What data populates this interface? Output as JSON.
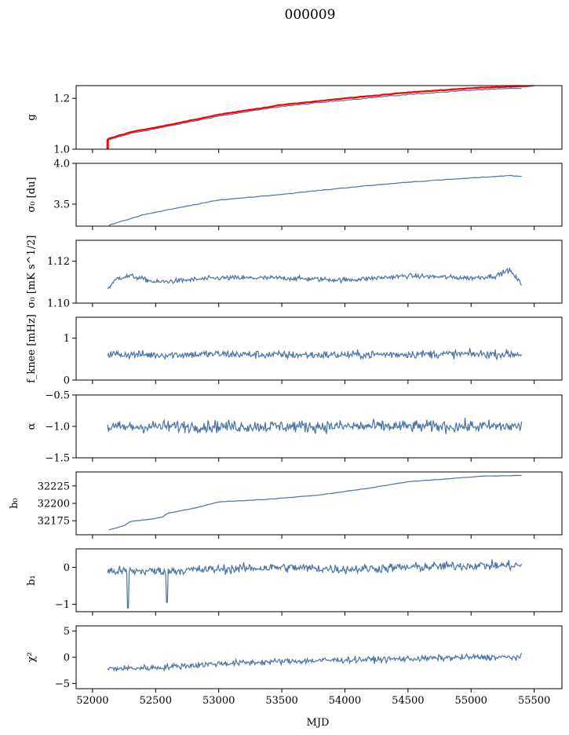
{
  "figure": {
    "title": "000009",
    "xlabel": "MJD"
  },
  "colors": {
    "series": "#4c72a4",
    "reference": "#ff0000"
  },
  "chart_data": [
    {
      "type": "line",
      "id": "g",
      "ylabel": "g",
      "xlim": [
        51870,
        55720
      ],
      "ylim": [
        1.0,
        1.25
      ],
      "yticks": [
        1.0,
        1.2
      ],
      "ytick_labels": [
        "1.0",
        "1.2"
      ],
      "series": [
        {
          "key": "measured",
          "x": [
            52120,
            52300,
            52600,
            53000,
            53500,
            54000,
            54500,
            55000,
            55400
          ],
          "y": [
            1.035,
            1.062,
            1.09,
            1.13,
            1.168,
            1.193,
            1.215,
            1.232,
            1.24
          ]
        },
        {
          "key": "reference",
          "x": [
            52120,
            52300,
            52600,
            53000,
            53500,
            54000,
            54500,
            55000,
            55500
          ],
          "y": [
            1.04,
            1.067,
            1.095,
            1.136,
            1.174,
            1.2,
            1.223,
            1.24,
            1.25
          ],
          "drop": {
            "x": 52120,
            "y_from": 1.04,
            "y_to": 1.0
          }
        }
      ]
    },
    {
      "type": "line",
      "id": "sigma0_du",
      "ylabel": "σ₀ [du]",
      "xlim": [
        51870,
        55720
      ],
      "ylim": [
        3.23,
        4.0
      ],
      "yticks": [
        3.5,
        4.0
      ],
      "ytick_labels": [
        "3.5",
        "4.0"
      ],
      "series": [
        {
          "key": "measured",
          "x": [
            52130,
            52400,
            52700,
            53000,
            53500,
            54000,
            54500,
            55000,
            55300,
            55400
          ],
          "y": [
            3.24,
            3.37,
            3.46,
            3.55,
            3.62,
            3.7,
            3.77,
            3.82,
            3.85,
            3.84
          ]
        }
      ]
    },
    {
      "type": "line",
      "id": "sigma0_mk",
      "ylabel": "σ₀ [mK s^1/2]",
      "xlim": [
        51870,
        55720
      ],
      "ylim": [
        1.1,
        1.13
      ],
      "yticks": [
        1.1,
        1.12
      ],
      "ytick_labels": [
        "1.10",
        "1.12"
      ],
      "series": [
        {
          "key": "measured",
          "x": [
            52120,
            52200,
            52300,
            52500,
            53000,
            53500,
            54000,
            54500,
            55000,
            55200,
            55300,
            55400
          ],
          "y": [
            1.107,
            1.112,
            1.113,
            1.11,
            1.112,
            1.112,
            1.111,
            1.113,
            1.112,
            1.113,
            1.116,
            1.109
          ]
        }
      ]
    },
    {
      "type": "line",
      "id": "fknee",
      "ylabel": "f_knee [mHz]",
      "xlim": [
        51870,
        55720
      ],
      "ylim": [
        0.0,
        1.5
      ],
      "yticks": [
        0,
        1
      ],
      "ytick_labels": [
        "0",
        "1"
      ],
      "series": [
        {
          "key": "measured",
          "x": [
            52120,
            52500,
            53000,
            53500,
            54000,
            54500,
            55000,
            55400
          ],
          "y": [
            0.62,
            0.6,
            0.62,
            0.6,
            0.6,
            0.62,
            0.62,
            0.62
          ]
        }
      ]
    },
    {
      "type": "line",
      "id": "alpha",
      "ylabel": "α",
      "xlim": [
        51870,
        55720
      ],
      "ylim": [
        -1.5,
        -0.5
      ],
      "yticks": [
        -1.5,
        -1.0,
        -0.5
      ],
      "ytick_labels": [
        "−1.5",
        "−1.0",
        "−0.5"
      ],
      "series": [
        {
          "key": "measured",
          "x": [
            52120,
            52500,
            53000,
            53500,
            54000,
            54500,
            55000,
            55400
          ],
          "y": [
            -1.02,
            -1.0,
            -1.0,
            -1.0,
            -1.0,
            -1.0,
            -1.0,
            -1.0
          ]
        }
      ]
    },
    {
      "type": "line",
      "id": "b0",
      "ylabel": "b₀",
      "xlim": [
        51870,
        55720
      ],
      "ylim": [
        32155,
        32245
      ],
      "yticks": [
        32175,
        32200,
        32225
      ],
      "ytick_labels": [
        "32175",
        "32200",
        "32225"
      ],
      "series": [
        {
          "key": "measured",
          "x": [
            52130,
            52250,
            52300,
            52450,
            52550,
            52600,
            52800,
            53000,
            53400,
            53800,
            54200,
            54500,
            54800,
            55100,
            55400
          ],
          "y": [
            32162,
            32168,
            32174,
            32177,
            32180,
            32186,
            32193,
            32202,
            32206,
            32212,
            32222,
            32231,
            32235,
            32239,
            32240
          ]
        }
      ]
    },
    {
      "type": "line",
      "id": "b1",
      "ylabel": "b₁",
      "xlim": [
        51870,
        55720
      ],
      "ylim": [
        -1.2,
        0.5
      ],
      "yticks": [
        -1,
        0
      ],
      "ytick_labels": [
        "−1",
        "0"
      ],
      "series": [
        {
          "key": "measured",
          "x": [
            52120,
            52500,
            53000,
            53500,
            54000,
            54500,
            55000,
            55400
          ],
          "y": [
            -0.1,
            -0.1,
            -0.05,
            0.0,
            -0.05,
            0.0,
            0.05,
            0.05
          ]
        }
      ],
      "dips": [
        {
          "x": 52280,
          "y": -1.1
        },
        {
          "x": 52590,
          "y": -0.95
        }
      ]
    },
    {
      "type": "line",
      "id": "chi2",
      "ylabel": "χ²",
      "xlim": [
        51870,
        55720
      ],
      "ylim": [
        -6,
        6
      ],
      "yticks": [
        -5,
        0,
        5
      ],
      "ytick_labels": [
        "−5",
        "0",
        "5"
      ],
      "xticks": [
        52000,
        52500,
        53000,
        53500,
        54000,
        54500,
        55000,
        55500
      ],
      "xtick_labels": [
        "52000",
        "52500",
        "53000",
        "53500",
        "54000",
        "54500",
        "55000",
        "55500"
      ],
      "series": [
        {
          "key": "measured",
          "x": [
            52120,
            52500,
            53000,
            53500,
            54000,
            54500,
            55000,
            55400
          ],
          "y": [
            -2.2,
            -2.0,
            -1.2,
            -0.8,
            -0.5,
            -0.3,
            0.0,
            0.0
          ]
        }
      ]
    }
  ]
}
